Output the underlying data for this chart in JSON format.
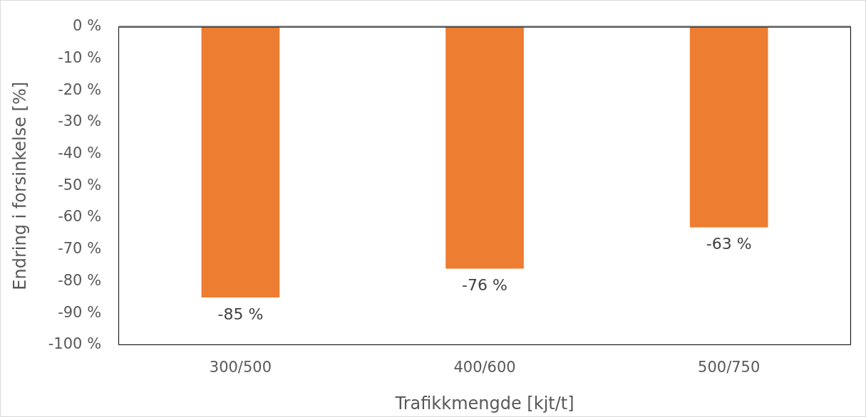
{
  "chart_data": {
    "type": "bar",
    "xlabel": "Trafikkmengde [kjt/t]",
    "ylabel": "Endring i forsinkelse [%]",
    "categories": [
      "300/500",
      "400/600",
      "500/750"
    ],
    "values": [
      -85,
      -76,
      -63
    ],
    "color": "#ed7d31",
    "value_labels": [
      "-85 %",
      "-76 %",
      "-63 %"
    ],
    "ylim": [
      -100,
      0
    ],
    "yticks": [
      {
        "value": 0,
        "label": "0 %"
      },
      {
        "value": -10,
        "label": "-10 %"
      },
      {
        "value": -20,
        "label": "-20 %"
      },
      {
        "value": -30,
        "label": "-30 %"
      },
      {
        "value": -40,
        "label": "-40 %"
      },
      {
        "value": -50,
        "label": "-50 %"
      },
      {
        "value": -60,
        "label": "-60 %"
      },
      {
        "value": -70,
        "label": "-70 %"
      },
      {
        "value": -80,
        "label": "-80 %"
      },
      {
        "value": -90,
        "label": "-90 %"
      },
      {
        "value": -100,
        "label": "-100 %"
      }
    ],
    "grid": false,
    "legend": false
  }
}
